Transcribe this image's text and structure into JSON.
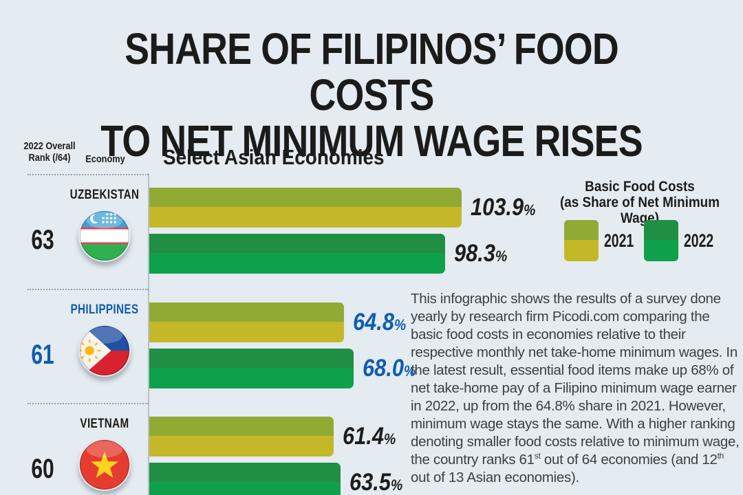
{
  "title": {
    "line1": "SHARE OF FILIPINOS’ FOOD COSTS",
    "line2": "TO NET MINIMUM WAGE RISES"
  },
  "table_headers": {
    "rank_line1": "2022 Overall",
    "rank_line2": "Rank (/64)",
    "economy": "Economy"
  },
  "chart_data": {
    "type": "bar",
    "title": "Select Asian Economies",
    "orientation": "horizontal",
    "value_unit": "%",
    "percent_sign": "%",
    "xlim": [
      0,
      104
    ],
    "grid": false,
    "legend": {
      "position": "top-right",
      "title_line1": "Basic Food Costs",
      "title_line2": "(as Share of Net Minimum Wage)",
      "items": [
        "2021",
        "2022"
      ]
    },
    "series": [
      "2021",
      "2022"
    ],
    "colors": {
      "bar_2021_top": "#91aa33",
      "bar_2021_bottom": "#c4b829",
      "bar_2022_top": "#208f44",
      "bar_2022_bottom": "#0fa04b",
      "highlight_blue": "#0e5caf",
      "background": "#e4ebf1"
    },
    "rows": [
      {
        "rank": "63",
        "economy": "UZBEKISTAN",
        "flag": "uzbekistan",
        "highlight": false,
        "values": {
          "y2021": 103.9,
          "y2022": 98.3
        },
        "labels": {
          "y2021": "103.9",
          "y2022": "98.3"
        }
      },
      {
        "rank": "61",
        "economy": "PHILIPPINES",
        "flag": "philippines",
        "highlight": true,
        "values": {
          "y2021": 64.8,
          "y2022": 68.0
        },
        "labels": {
          "y2021": "64.8",
          "y2022": "68.0"
        }
      },
      {
        "rank": "60",
        "economy": "VIETNAM",
        "flag": "vietnam",
        "highlight": false,
        "values": {
          "y2021": 61.4,
          "y2022": 63.5
        },
        "labels": {
          "y2021": "61.4",
          "y2022": "63.5"
        }
      }
    ]
  },
  "description": {
    "segments": [
      {
        "t": "This infographic shows the results of a survey done yearly by research firm Picodi.com comparing the basic food costs in economies relative to their respective monthly net take-home minimum wages. In the latest result, essential food items make up 68% of net take-home pay of a Filipino minimum wage earner in 2022, up from the 64.8% share in 2021. However, minimum wage stays the same. With a higher ranking denoting smaller food costs relative to minimum wage, the country ranks 61"
      },
      {
        "sup": "st"
      },
      {
        "t": " out of 64 economies (and 12"
      },
      {
        "sup": "th"
      },
      {
        "t": " out of 13 Asian economies)."
      }
    ]
  }
}
